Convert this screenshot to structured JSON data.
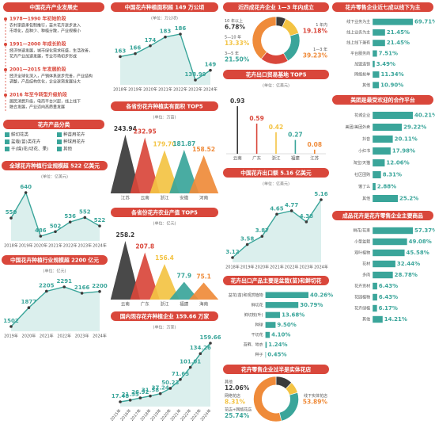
{
  "history": {
    "title": "中国花卉产业发展史",
    "items": [
      {
        "period": "1978—1990 年初始阶段",
        "lines": [
          "农村家庭承包制推行，苗木花卉逐步进入",
          "市场化，品种少、种植分散，产业规模小"
        ]
      },
      {
        "period": "1991—2000 年成长阶段",
        "lines": [
          "经济快速发展，城市绿化需求旺盛，生活改善，",
          "花卉产业加速发展，专业市场初步形成"
        ]
      },
      {
        "period": "2001—2015 年发展阶段",
        "lines": [
          "经济全球化深入，产销体系逐步完善，产业结构",
          "调整，产品结构优化，企业逐渐发展壮大"
        ]
      },
      {
        "period": "2016 年至今转型升级阶段",
        "lines": [
          "居民消费升级，电商平台兴起，线上线下",
          "融合发展，产业迈向高质量发展"
        ]
      }
    ]
  },
  "classification": {
    "title": "花卉产品分类",
    "items": [
      "鲜切花类",
      "种苗用花卉",
      "盆栽(苗)类花卉",
      "种球用花卉",
      "干(燥)花(切花、果)",
      "其他"
    ]
  },
  "chart_data": [
    {
      "type": "line",
      "title": "全球花卉种植行业规模超 522 亿美元",
      "unit": "(单位：亿美元)",
      "categories": [
        "2018年",
        "2019年",
        "2020年",
        "2021年",
        "2022年",
        "2023年",
        "2024年"
      ],
      "values": [
        550,
        640,
        486,
        502,
        536,
        552,
        522
      ],
      "color": "#3aa59a"
    },
    {
      "type": "line",
      "title": "中国花卉种植行业规模超 2200 亿元",
      "unit": "(单位：亿元)",
      "categories": [
        "2019年",
        "2020年",
        "2021年",
        "2022年",
        "2023年",
        "2024年"
      ],
      "values": [
        1502,
        1877,
        2205,
        2291,
        2166,
        2200
      ],
      "color": "#3aa59a"
    },
    {
      "type": "line",
      "title": "中国花卉种植面积超 149 万公顷",
      "unit": "(单位：万公顷)",
      "categories": [
        "2018年",
        "2019年",
        "2020年",
        "2021年",
        "2022年",
        "2023年",
        "2024年"
      ],
      "values": [
        163,
        166,
        174,
        183,
        186,
        138.99,
        149
      ],
      "color": "#3aa59a"
    },
    {
      "type": "spike",
      "title": "各省份花卉种植实有面积 TOP5",
      "unit": "(单位：万亩)",
      "categories": [
        "江苏",
        "云南",
        "浙江",
        "安徽",
        "河南"
      ],
      "values": [
        243.94,
        232.95,
        179.7,
        181.87,
        158.52
      ],
      "value_labels": [
        "243.94",
        "232.95",
        "179.70",
        "181.87",
        "158.52"
      ],
      "colors": [
        "#3a3a3a",
        "#d9473b",
        "#f3c343",
        "#3aa59a",
        "#ef8b3a"
      ]
    },
    {
      "type": "spike",
      "title": "各省份花卉农业产值 TOP5",
      "unit": "(单位：亿元)",
      "categories": [
        "云南",
        "广东",
        "浙江",
        "福建",
        "海南"
      ],
      "values": [
        258.2,
        207.8,
        156.4,
        77.9,
        75.1
      ],
      "colors": [
        "#3a3a3a",
        "#d9473b",
        "#f3c343",
        "#3aa59a",
        "#ef8b3a"
      ]
    },
    {
      "type": "line",
      "title": "国内现存花卉种植企业 159.66 万家",
      "unit": "(单位：万家)",
      "categories": [
        "2015年",
        "2016年",
        "2017年",
        "2018年",
        "2019年",
        "2020年",
        "2021年",
        "2022年",
        "2023年",
        "2024年"
      ],
      "values": [
        17.48,
        21.55,
        26.92,
        31.58,
        37.24,
        50.23,
        71.65,
        101.01,
        134.26,
        159.66
      ],
      "color": "#3aa59a"
    },
    {
      "type": "donut",
      "title": "近四成花卉企业 1—3 年内成立",
      "categories": [
        "10 年以上",
        "5—10 年",
        "3—5 年",
        "1 年内",
        "1—3 年"
      ],
      "values": [
        6.78,
        13.33,
        21.5,
        19.18,
        39.23
      ],
      "value_labels": [
        "6.78%",
        "13.33%",
        "21.50%",
        "19.18%",
        "39.23%"
      ],
      "colors": [
        "#3a3a3a",
        "#f3c343",
        "#3aa59a",
        "#d9473b",
        "#ef8b3a"
      ]
    },
    {
      "type": "stem",
      "title": "花卉出口贸易基地 TOP5",
      "unit": "(单位：亿美元)",
      "categories": [
        "云南",
        "广东",
        "浙江",
        "福建",
        "江苏"
      ],
      "values": [
        0.93,
        0.59,
        0.42,
        0.27,
        0.08
      ],
      "colors": [
        "#3a3a3a",
        "#d9473b",
        "#f3c343",
        "#3aa59a",
        "#ef8b3a"
      ]
    },
    {
      "type": "line",
      "title": "中国花卉出口额 5.16 亿美元",
      "unit": "(单位：亿美元)",
      "categories": [
        "2018年",
        "2019年",
        "2020年",
        "2021年",
        "2022年",
        "2023年",
        "2024年"
      ],
      "values": [
        3.12,
        3.58,
        3.87,
        4.65,
        4.77,
        4.38,
        5.16
      ],
      "color": "#3aa59a"
    },
    {
      "type": "hbar",
      "title": "花卉出口产品主要是盆栽(苗)和鲜切花",
      "categories": [
        "盆花(苗)和观赏植物",
        "鲜切花",
        "鲜切枝(叶)",
        "种球",
        "干切花",
        "苔藓、地衣",
        "种子"
      ],
      "values": [
        40.26,
        30.79,
        13.68,
        9.5,
        4.1,
        1.24,
        0.45
      ],
      "value_labels": [
        "40.26%",
        "30.79%",
        "13.68%",
        "9.50%",
        "4.10%",
        "1.24%",
        "0.45%"
      ],
      "color": "#3aa59a"
    },
    {
      "type": "donut",
      "title": "花卉零售企业过半是实体花店",
      "categories": [
        "其他",
        "网络花店",
        "花店+网络花店",
        "线下实体花店"
      ],
      "values": [
        12.06,
        8.31,
        25.74,
        53.89
      ],
      "value_labels": [
        "12.06%",
        "8.31%",
        "25.74%",
        "53.89%"
      ],
      "colors": [
        "#3a3a3a",
        "#f3c343",
        "#3aa59a",
        "#ef8b3a"
      ]
    },
    {
      "type": "hbar",
      "title": "花卉零售企业近七成以线下为主",
      "categories": [
        "线下业务为主",
        "线上业务为主",
        "线上线下兼有",
        "平台服务商",
        "加盟连锁",
        "网络抢单",
        "其他"
      ],
      "values": [
        69.71,
        21.45,
        21.45,
        7.51,
        3.49,
        11.34,
        10.9
      ],
      "value_labels": [
        "69.71%",
        "21.45%",
        "21.45%",
        "7.51%",
        "3.49%",
        "11.34%",
        "10.90%"
      ],
      "color": "#3aa59a"
    },
    {
      "type": "hbar",
      "title": "美团是最受欢迎的合作平台",
      "categories": [
        "花城企业",
        "美团/美团外卖",
        "抖音",
        "小红书",
        "淘宝/天猫",
        "社区团购",
        "饿了么",
        "其他"
      ],
      "values": [
        40.21,
        29.22,
        20.11,
        17.98,
        12.06,
        8.31,
        2.88,
        25.2
      ],
      "value_labels": [
        "40.21%",
        "29.22%",
        "20.11%",
        "17.98%",
        "12.06%",
        "8.31%",
        "2.88%",
        "25.2%"
      ],
      "color": "#3aa59a"
    },
    {
      "type": "hbar",
      "title": "成品花卉是花卉零售企业主要商品",
      "categories": [
        "鲜花/花束",
        "小型盆栽",
        "观叶植物",
        "花材",
        "多肉",
        "花卉资材",
        "花园植物",
        "花卉绿植",
        "其他"
      ],
      "values": [
        57.37,
        49.08,
        45.58,
        32.44,
        28.78,
        6.43,
        6.43,
        6.17,
        14.21
      ],
      "value_labels": [
        "57.37%",
        "49.08%",
        "45.58%",
        "32.44%",
        "28.78%",
        "6.43%",
        "6.43%",
        "6.17%",
        "14.21%"
      ],
      "color": "#3aa59a"
    }
  ]
}
